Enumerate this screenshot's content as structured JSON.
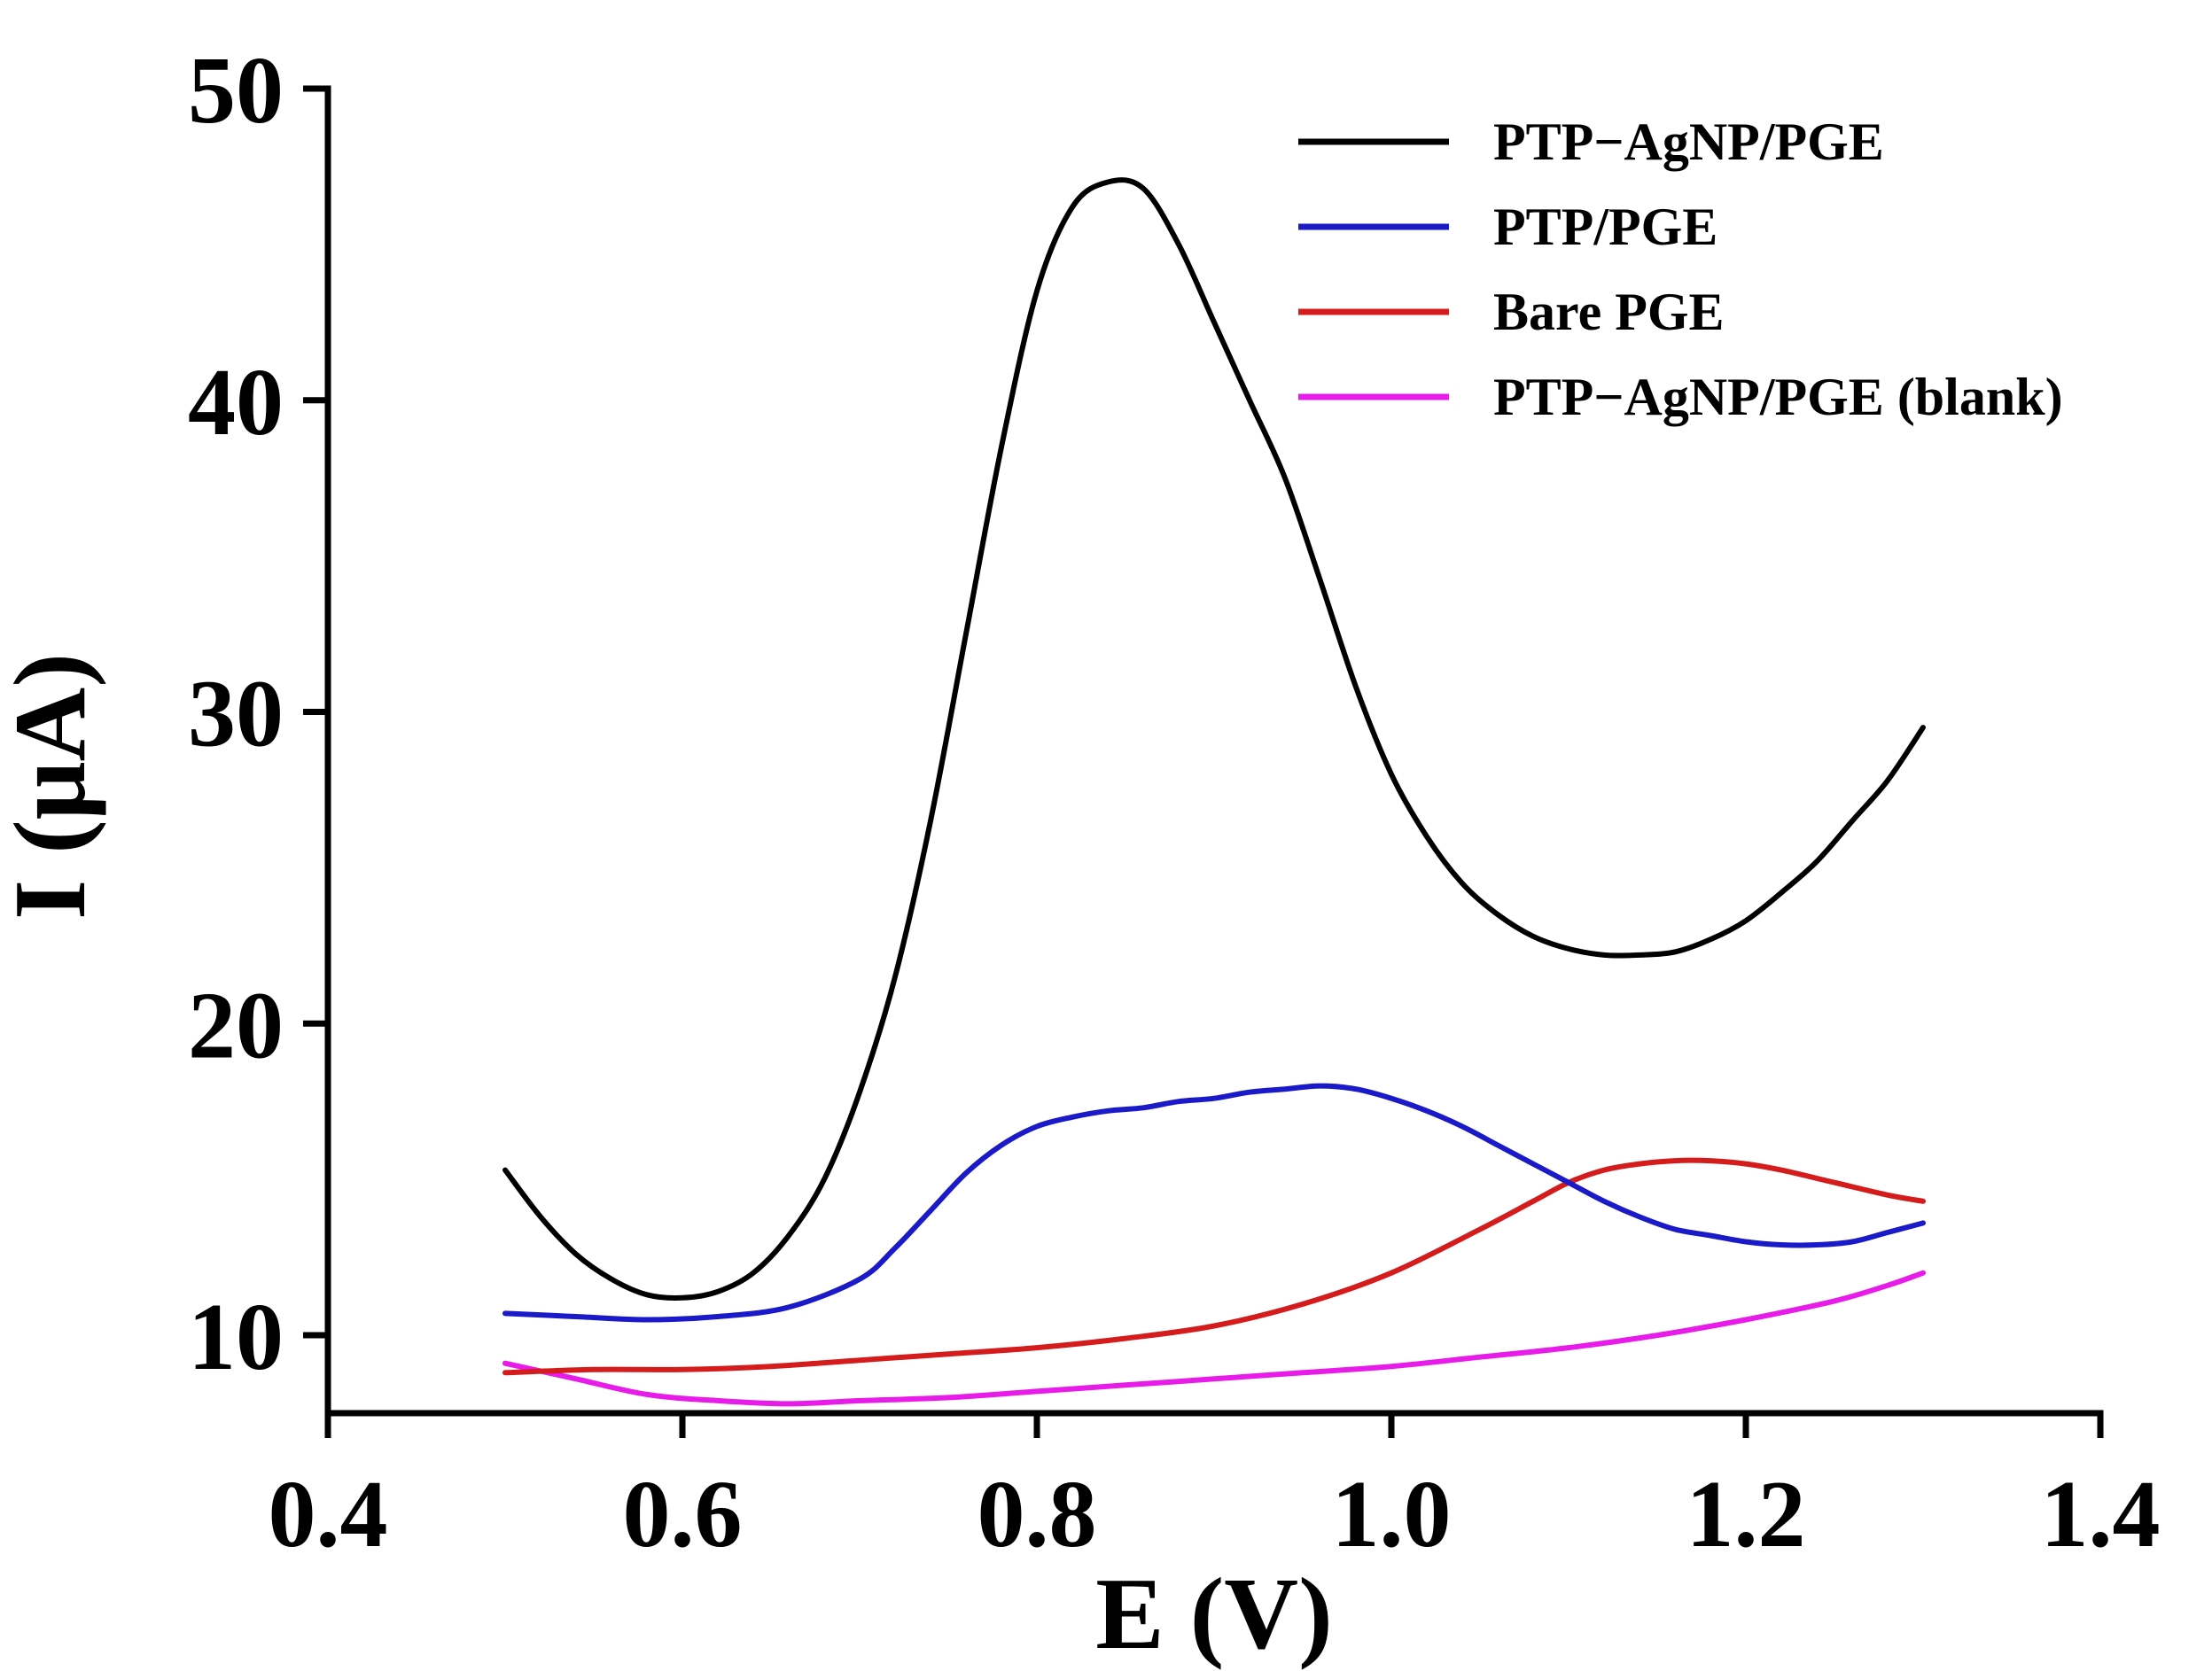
{
  "chart_data": {
    "type": "line",
    "title": "",
    "xlabel": "E (V)",
    "ylabel": "I (μA)",
    "xlim": [
      0.4,
      1.4
    ],
    "ylim": [
      7.5,
      50
    ],
    "xticks": [
      0.4,
      0.6,
      0.8,
      1.0,
      1.2,
      1.4
    ],
    "xtick_labels": [
      "0.4",
      "0.6",
      "0.8",
      "1.0",
      "1.2",
      "1.4"
    ],
    "yticks": [
      10,
      20,
      30,
      40,
      50
    ],
    "ytick_labels": [
      "10",
      "20",
      "30",
      "40",
      "50"
    ],
    "grid": false,
    "legend_position": "top-right",
    "series": [
      {
        "name": "PTP−AgNP/PGE",
        "color": "#000000",
        "x": [
          0.5,
          0.52,
          0.54,
          0.56,
          0.58,
          0.6,
          0.62,
          0.64,
          0.66,
          0.68,
          0.7,
          0.72,
          0.74,
          0.76,
          0.78,
          0.8,
          0.82,
          0.84,
          0.86,
          0.88,
          0.9,
          0.92,
          0.94,
          0.96,
          0.98,
          1.0,
          1.02,
          1.04,
          1.06,
          1.08,
          1.1,
          1.12,
          1.14,
          1.16,
          1.18,
          1.2,
          1.22,
          1.24,
          1.26,
          1.28,
          1.3
        ],
        "y": [
          15.3,
          13.8,
          12.6,
          11.8,
          11.3,
          11.2,
          11.4,
          12.0,
          13.2,
          15.0,
          17.8,
          21.5,
          26.5,
          32.5,
          38.5,
          43.5,
          46.2,
          47.0,
          46.8,
          45.0,
          42.5,
          40.0,
          37.5,
          34.2,
          30.8,
          28.0,
          26.0,
          24.5,
          23.5,
          22.8,
          22.4,
          22.2,
          22.2,
          22.3,
          22.7,
          23.3,
          24.2,
          25.2,
          26.5,
          27.8,
          29.5
        ]
      },
      {
        "name": "PTP/PGE",
        "color": "#1a1ac8",
        "x": [
          0.5,
          0.54,
          0.58,
          0.62,
          0.66,
          0.7,
          0.72,
          0.74,
          0.76,
          0.78,
          0.8,
          0.82,
          0.84,
          0.86,
          0.88,
          0.9,
          0.92,
          0.94,
          0.96,
          0.98,
          1.0,
          1.02,
          1.04,
          1.06,
          1.08,
          1.1,
          1.12,
          1.14,
          1.16,
          1.18,
          1.2,
          1.22,
          1.24,
          1.26,
          1.28,
          1.3
        ],
        "y": [
          10.7,
          10.6,
          10.5,
          10.6,
          10.9,
          11.8,
          12.8,
          14.0,
          15.2,
          16.1,
          16.7,
          17.0,
          17.2,
          17.3,
          17.5,
          17.6,
          17.8,
          17.9,
          18.0,
          17.9,
          17.6,
          17.2,
          16.7,
          16.1,
          15.5,
          14.9,
          14.3,
          13.8,
          13.4,
          13.2,
          13.0,
          12.9,
          12.9,
          13.0,
          13.3,
          13.6
        ]
      },
      {
        "name": "Bare PGE",
        "color": "#d41c1c",
        "x": [
          0.5,
          0.55,
          0.6,
          0.65,
          0.7,
          0.75,
          0.8,
          0.85,
          0.9,
          0.95,
          1.0,
          1.05,
          1.08,
          1.1,
          1.12,
          1.14,
          1.16,
          1.18,
          1.2,
          1.22,
          1.25,
          1.28,
          1.3
        ],
        "y": [
          8.8,
          8.9,
          8.9,
          9.0,
          9.2,
          9.4,
          9.6,
          9.9,
          10.3,
          11.0,
          12.0,
          13.4,
          14.3,
          14.9,
          15.3,
          15.5,
          15.6,
          15.6,
          15.5,
          15.3,
          14.9,
          14.5,
          14.3
        ]
      },
      {
        "name": "PTP−AgNP/PGE (blank)",
        "color": "#e81ce8",
        "x": [
          0.5,
          0.54,
          0.58,
          0.62,
          0.66,
          0.7,
          0.75,
          0.8,
          0.85,
          0.9,
          0.95,
          1.0,
          1.05,
          1.1,
          1.15,
          1.2,
          1.25,
          1.28,
          1.3
        ],
        "y": [
          9.1,
          8.6,
          8.1,
          7.9,
          7.8,
          7.9,
          8.0,
          8.2,
          8.4,
          8.6,
          8.8,
          9.0,
          9.3,
          9.6,
          10.0,
          10.5,
          11.1,
          11.6,
          12.0
        ]
      }
    ]
  }
}
